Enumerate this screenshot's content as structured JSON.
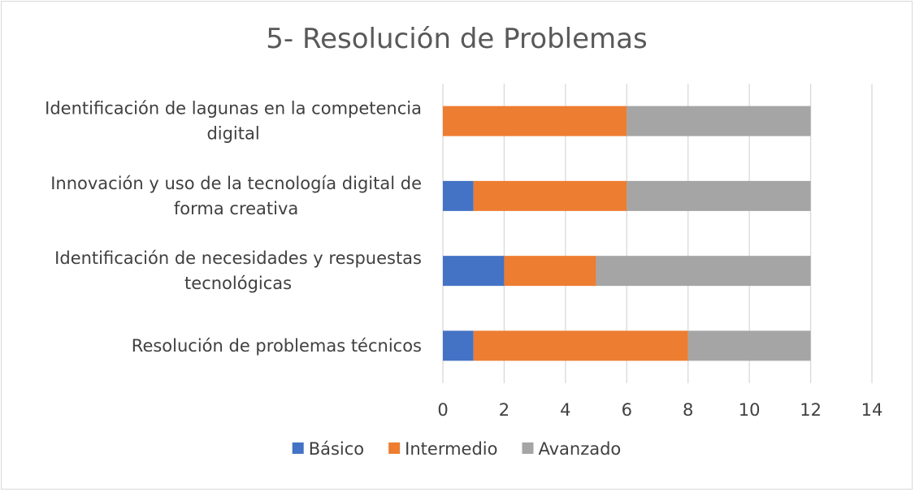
{
  "chart_data": {
    "type": "bar",
    "orientation": "horizontal",
    "stacked": true,
    "title": "5- Resolución de Problemas",
    "categories": [
      [
        "Identificación de lagunas en la competencia",
        "digital"
      ],
      [
        "Innovación y uso de la tecnología digital de",
        "forma creativa"
      ],
      [
        "Identificación de necesidades y respuestas",
        "tecnológicas"
      ],
      [
        "Resolución de problemas técnicos"
      ]
    ],
    "series": [
      {
        "name": "Básico",
        "color": "#4472c4",
        "values": [
          0,
          1,
          2,
          1
        ]
      },
      {
        "name": "Intermedio",
        "color": "#ed7d31",
        "values": [
          6,
          5,
          3,
          7
        ]
      },
      {
        "name": "Avanzado",
        "color": "#a5a5a5",
        "values": [
          6,
          6,
          7,
          4
        ]
      }
    ],
    "xlim": [
      0,
      14
    ],
    "xticks": [
      "0",
      "2",
      "4",
      "6",
      "8",
      "10",
      "12",
      "14"
    ],
    "grid": true,
    "legend": "bottom"
  }
}
